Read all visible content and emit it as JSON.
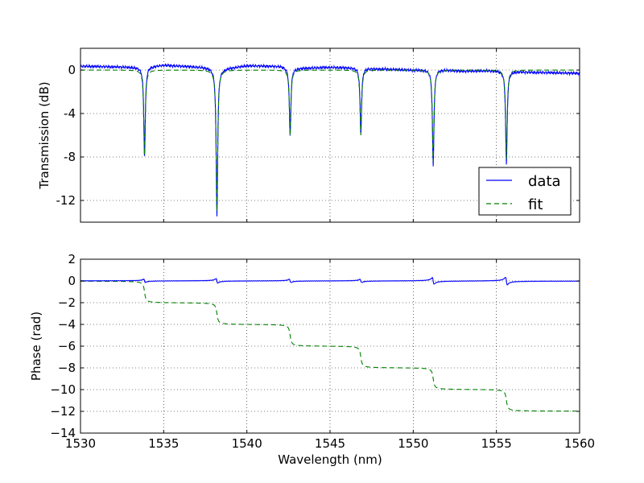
{
  "colors": {
    "data": "#0000ff",
    "fit": "#007f00",
    "grid": "#000000",
    "frame": "#000000",
    "background": "#ffffff"
  },
  "chart_data": [
    {
      "type": "line",
      "panel": "top",
      "title": "",
      "xlabel": "",
      "ylabel": "Transmission (dB)",
      "xlim": [
        1530,
        1560
      ],
      "ylim": [
        -14,
        2
      ],
      "xticks": [
        1530,
        1535,
        1540,
        1545,
        1550,
        1555,
        1560
      ],
      "yticks": [
        0,
        -4,
        -8,
        -12
      ],
      "ytick_labels": [
        "0",
        "-4",
        "-8",
        "-12"
      ],
      "grid": true,
      "legend_position": "lower-right",
      "legend": [
        "data",
        "fit"
      ],
      "series": [
        {
          "name": "data",
          "style": "solid",
          "baseline": [
            [
              1530,
              0.35
            ],
            [
              1532,
              0.3
            ],
            [
              1533.5,
              0.25
            ],
            [
              1535,
              0.45
            ],
            [
              1537.5,
              0.25
            ],
            [
              1538.5,
              0.1
            ],
            [
              1540,
              0.4
            ],
            [
              1542,
              0.35
            ],
            [
              1542.8,
              0.15
            ],
            [
              1545,
              0.25
            ],
            [
              1546.8,
              0.2
            ],
            [
              1548,
              0.1
            ],
            [
              1550,
              0.0
            ],
            [
              1551.5,
              0.05
            ],
            [
              1553,
              -0.1
            ],
            [
              1555,
              -0.05
            ],
            [
              1557,
              -0.2
            ],
            [
              1560,
              -0.3
            ]
          ],
          "dips": [
            {
              "center": 1533.85,
              "depth": -8.2
            },
            {
              "center": 1538.2,
              "depth": -13.6
            },
            {
              "center": 1542.6,
              "depth": -6.2
            },
            {
              "center": 1546.85,
              "depth": -6.0
            },
            {
              "center": 1551.2,
              "depth": -8.9
            },
            {
              "center": 1555.6,
              "depth": -8.6
            }
          ]
        },
        {
          "name": "fit",
          "style": "dashed",
          "baseline": [
            [
              1530,
              0.0
            ],
            [
              1560,
              0.0
            ]
          ],
          "dips": [
            {
              "center": 1533.85,
              "depth": -7.8
            },
            {
              "center": 1538.2,
              "depth": -13.0
            },
            {
              "center": 1542.6,
              "depth": -6.0
            },
            {
              "center": 1546.85,
              "depth": -6.0
            },
            {
              "center": 1551.2,
              "depth": -8.4
            },
            {
              "center": 1555.6,
              "depth": -8.2
            }
          ]
        }
      ]
    },
    {
      "type": "line",
      "panel": "bottom",
      "title": "",
      "xlabel": "Wavelength (nm)",
      "ylabel": "Phase (rad)",
      "xlim": [
        1530,
        1560
      ],
      "ylim": [
        -14,
        2
      ],
      "xticks": [
        1530,
        1535,
        1540,
        1545,
        1550,
        1555,
        1560
      ],
      "yticks": [
        2,
        0,
        -2,
        -4,
        -6,
        -8,
        -10,
        -12,
        -14
      ],
      "ytick_labels": [
        "2",
        "0",
        "−2",
        "−4",
        "−6",
        "−8",
        "−10",
        "−12",
        "−14"
      ],
      "grid": true,
      "series": [
        {
          "name": "data",
          "style": "solid",
          "level": 0.0,
          "blips": [
            {
              "center": 1533.85,
              "size": 0.15
            },
            {
              "center": 1538.2,
              "size": 0.2
            },
            {
              "center": 1542.6,
              "size": 0.15
            },
            {
              "center": 1546.85,
              "size": 0.15
            },
            {
              "center": 1551.2,
              "size": 0.3
            },
            {
              "center": 1555.6,
              "size": 0.35
            }
          ]
        },
        {
          "name": "fit",
          "style": "dashed",
          "start_level": 0.0,
          "steps": [
            {
              "center": 1533.85,
              "delta": -2
            },
            {
              "center": 1538.2,
              "delta": -2
            },
            {
              "center": 1542.6,
              "delta": -2
            },
            {
              "center": 1546.85,
              "delta": -2
            },
            {
              "center": 1551.2,
              "delta": -2
            },
            {
              "center": 1555.6,
              "delta": -2
            }
          ],
          "end_level": -12.0
        }
      ]
    }
  ]
}
